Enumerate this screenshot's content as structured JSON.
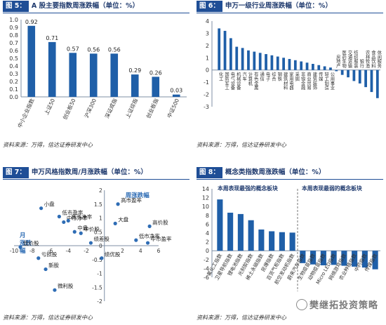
{
  "figure5": {
    "tag": "图 5：",
    "title": "A 股主要指数周涨跌幅（单位：%）",
    "source": "资料来源：万得，信达证券研发中心"
  },
  "figure6": {
    "tag": "图 6：",
    "title": "申万一级行业周涨跌幅（单位：%）",
    "source": "资料来源：万得，信达证券研发中心"
  },
  "figure7": {
    "tag": "图 7：",
    "title": "申万风格指数周/月涨跌幅（单位：%）",
    "source": "资料来源：万得，信达证券研发中心",
    "weekly_axis_label": "周涨跌幅",
    "monthly_axis_label": "月涨跌幅"
  },
  "figure8": {
    "tag": "图 8：",
    "title": "概念类指数周涨跌幅（单位：%）",
    "source": "资料来源：万得，信达证券研发中心",
    "best_header": "本周表现最强的概念板块",
    "worst_header": "本周表现最弱的概念板块"
  },
  "watermark": {
    "text": "樊继拓投资策略"
  },
  "colors": {
    "bar": "#1f5fa8",
    "dot": "#2f6db5",
    "axis": "#7f8fa6",
    "title": "#1f3a6e"
  },
  "chart_data": [
    {
      "id": "fig5",
      "type": "bar",
      "categories": [
        "中小企业指数",
        "上证50",
        "创业板50",
        "沪深300",
        "深证成指",
        "上证综指",
        "创业板指",
        "中证500"
      ],
      "values": [
        0.92,
        0.71,
        0.57,
        0.56,
        0.56,
        0.29,
        0.26,
        0.03
      ],
      "ylim": [
        0,
        1.0
      ],
      "yticks": [
        0,
        0.1,
        0.2,
        0.3,
        0.4,
        0.5,
        0.6,
        0.7,
        0.8,
        0.9,
        1.0
      ],
      "data_labels": [
        "0.92",
        "0.71",
        "0.57",
        "0.56",
        "0.56",
        "0.29",
        "0.26",
        "0.03"
      ],
      "grid": false
    },
    {
      "id": "fig6",
      "type": "bar",
      "categories": [
        "化工",
        "国防军工",
        "电气设备",
        "机械设备",
        "汽车",
        "计算机",
        "有色金属",
        "通信",
        "电子",
        "综合",
        "钢铁",
        "建筑材料",
        "家用电器",
        "采掘",
        "非银金融",
        "商业贸易",
        "建筑装饰",
        "传媒",
        "轻工制造",
        "公用事业",
        "房地产",
        "医药生物",
        "交通运输",
        "纺织服装",
        "银行",
        "农林牧渔",
        "食品饮料",
        "休闲服务"
      ],
      "values": [
        3.4,
        3.2,
        2.6,
        1.9,
        1.8,
        1.6,
        1.5,
        1.4,
        1.3,
        1.2,
        1.1,
        1.0,
        0.9,
        0.8,
        0.7,
        0.6,
        0.5,
        0.4,
        0.3,
        0.2,
        -0.1,
        -0.4,
        -0.6,
        -0.9,
        -1.1,
        -1.4,
        -1.8,
        -2.3
      ],
      "ylim": [
        -3,
        4
      ],
      "yticks": [
        -3,
        -2,
        -1,
        0,
        1,
        2,
        3,
        4
      ],
      "grid": false
    },
    {
      "id": "fig7",
      "type": "scatter",
      "xlim": [
        -10,
        6
      ],
      "ylim": [
        -2,
        2
      ],
      "xticks": [
        -10,
        -8,
        -6,
        -4,
        -2,
        0,
        2,
        4,
        6
      ],
      "yticks": [
        -2,
        -1.5,
        -1,
        -0.5,
        0,
        0.5,
        1,
        1.5,
        2
      ],
      "points": [
        {
          "label": "高市盈率",
          "x": 1.5,
          "y": 1.5
        },
        {
          "label": "大盘",
          "x": 1.2,
          "y": 0.8
        },
        {
          "label": "高价股",
          "x": 5.0,
          "y": 0.7
        },
        {
          "label": "小盘",
          "x": -7.0,
          "y": 1.35
        },
        {
          "label": "低市盈率",
          "x": -5.0,
          "y": 1.05
        },
        {
          "label": "中市净率",
          "x": -4.5,
          "y": 0.85
        },
        {
          "label": "高市净率",
          "x": -4.0,
          "y": 0.9
        },
        {
          "label": "中盘",
          "x": -3.3,
          "y": 0.5
        },
        {
          "label": "中价股",
          "x": -2.6,
          "y": 0.45
        },
        {
          "label": "绩差股",
          "x": -1.5,
          "y": 0.1
        },
        {
          "label": "低价股",
          "x": -9.3,
          "y": -0.05
        },
        {
          "label": "亏损股",
          "x": -7.3,
          "y": -0.45
        },
        {
          "label": "低市净率",
          "x": 3.5,
          "y": 0.2
        },
        {
          "label": "中市盈率",
          "x": 4.8,
          "y": 0.1
        },
        {
          "label": "新股",
          "x": -6.5,
          "y": -0.85
        },
        {
          "label": "微利股",
          "x": -5.5,
          "y": -1.6
        },
        {
          "label": "绩优股",
          "x": -0.3,
          "y": -0.45
        }
      ],
      "grid": false
    },
    {
      "id": "fig8",
      "type": "bar",
      "categories": [
        "氟化工指数",
        "卫星导航指数",
        "锂电池指数",
        "光刻胶指数",
        "稀土永磁指数",
        "民爆指数",
        "百货气柜指数",
        "航空发动机指数",
        "蔚来汽车指数",
        "生物疫苗指数",
        "动物疫苗指数",
        "Micro LED指数",
        "网络游戏指数",
        "农业种植指数",
        "中药指数",
        "传媒指数"
      ],
      "values": [
        11.6,
        8.6,
        8.3,
        6.9,
        4.8,
        4.4,
        4.2,
        4.1,
        -2.8,
        -3.1,
        -3.3,
        -3.2,
        -3.4,
        -3.6,
        -3.8,
        -4.2
      ],
      "ylim": [
        -6,
        14
      ],
      "yticks": [
        -6,
        -4,
        -2,
        0,
        2,
        4,
        6,
        8,
        10,
        12,
        14
      ],
      "grid": false
    }
  ]
}
